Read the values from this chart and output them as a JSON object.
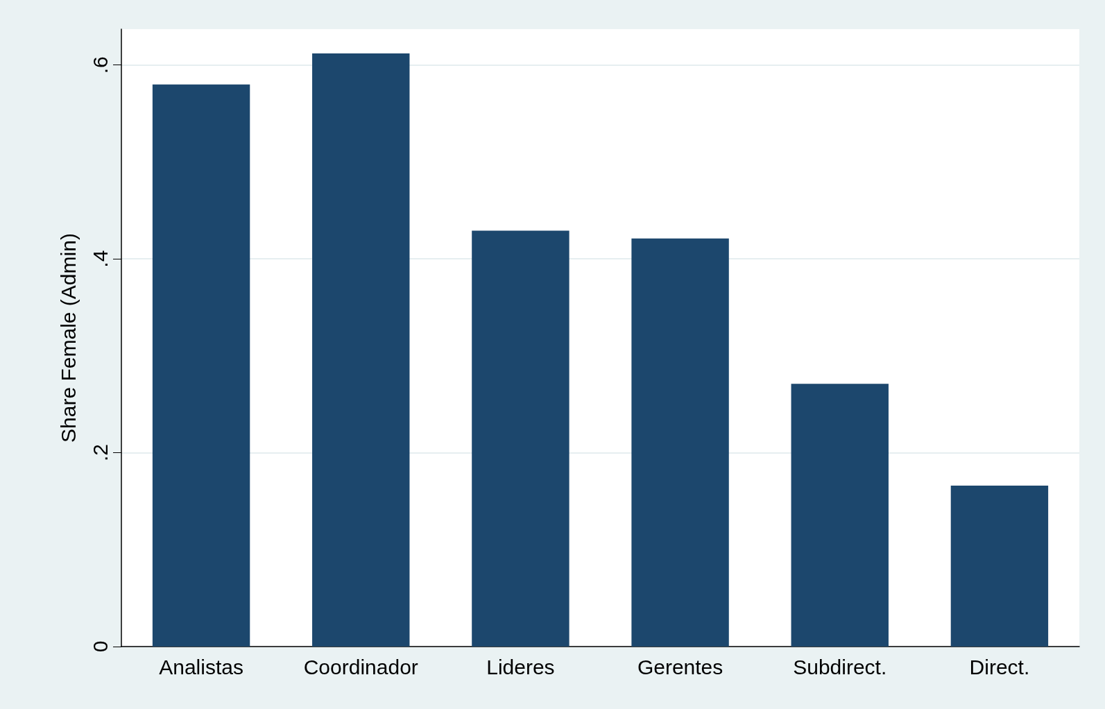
{
  "chart_data": {
    "type": "bar",
    "ylabel": "Share Female (Admin)",
    "categories": [
      "Analistas",
      "Coordinador",
      "Lideres",
      "Gerentes",
      "Subdirect.",
      "Direct."
    ],
    "values": [
      0.58,
      0.612,
      0.429,
      0.421,
      0.271,
      0.166
    ],
    "color": "#1c476d",
    "ylim": [
      0,
      0.637
    ],
    "yticks": [
      0,
      {
        "value": 0.2,
        "label": ".2"
      },
      {
        "value": 0.4,
        "label": ".4"
      },
      {
        "value": 0.6,
        "label": ".6"
      }
    ],
    "grid": "y"
  }
}
